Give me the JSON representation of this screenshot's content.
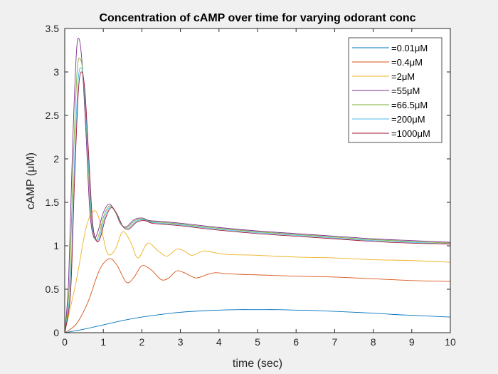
{
  "chart_data": {
    "type": "line",
    "title": "Concentration of cAMP over time for varying odorant conc",
    "xlabel": "time (sec)",
    "ylabel": "cAMP (μM)",
    "xlim": [
      0,
      10
    ],
    "ylim": [
      0,
      3.5
    ],
    "xticks": [
      0,
      1,
      2,
      3,
      4,
      5,
      6,
      7,
      8,
      9,
      10
    ],
    "yticks": [
      0,
      0.5,
      1,
      1.5,
      2,
      2.5,
      3,
      3.5
    ],
    "xtick_labels": [
      "0",
      "1",
      "2",
      "3",
      "4",
      "5",
      "6",
      "7",
      "8",
      "9",
      "10"
    ],
    "ytick_labels": [
      "0",
      "0.5",
      "1",
      "1.5",
      "2",
      "2.5",
      "3",
      "3.5"
    ],
    "grid": false,
    "legend_position": "top-right",
    "series": [
      {
        "name": "=0.01μM",
        "color": "#0072bd",
        "x": [
          0,
          0.5,
          1,
          1.5,
          2,
          2.5,
          3,
          3.5,
          4,
          4.5,
          5,
          5.5,
          6,
          6.5,
          7,
          7.5,
          8,
          8.5,
          9,
          9.5,
          10
        ],
        "y": [
          0,
          0.04,
          0.09,
          0.14,
          0.18,
          0.21,
          0.235,
          0.25,
          0.26,
          0.265,
          0.265,
          0.265,
          0.26,
          0.255,
          0.245,
          0.235,
          0.225,
          0.21,
          0.2,
          0.19,
          0.18
        ]
      },
      {
        "name": "=0.4μM",
        "color": "#d95319",
        "x": [
          0,
          0.3,
          0.6,
          0.9,
          1.15,
          1.35,
          1.6,
          1.8,
          2.0,
          2.25,
          2.5,
          2.7,
          2.9,
          3.1,
          3.4,
          3.7,
          3.9,
          4.2,
          4.6,
          5,
          6,
          7,
          8,
          9,
          10
        ],
        "y": [
          0,
          0.1,
          0.35,
          0.72,
          0.85,
          0.78,
          0.58,
          0.64,
          0.77,
          0.72,
          0.61,
          0.63,
          0.71,
          0.69,
          0.63,
          0.67,
          0.69,
          0.68,
          0.67,
          0.665,
          0.65,
          0.64,
          0.62,
          0.6,
          0.59
        ]
      },
      {
        "name": "=2μM",
        "color": "#edb120",
        "x": [
          0,
          0.3,
          0.55,
          0.75,
          0.9,
          1.1,
          1.3,
          1.5,
          1.7,
          1.9,
          2.15,
          2.4,
          2.65,
          2.9,
          3.1,
          3.3,
          3.6,
          3.9,
          4.2,
          5,
          6,
          7,
          8,
          9,
          10
        ],
        "y": [
          0,
          0.6,
          1.2,
          1.4,
          1.3,
          0.92,
          0.95,
          1.16,
          1.05,
          0.86,
          1.03,
          0.95,
          0.88,
          0.96,
          0.94,
          0.89,
          0.94,
          0.92,
          0.9,
          0.89,
          0.87,
          0.86,
          0.84,
          0.83,
          0.81
        ]
      },
      {
        "name": "=55μM",
        "color": "#7e2f8e",
        "x": [
          0,
          0.1,
          0.2,
          0.3,
          0.37,
          0.45,
          0.55,
          0.65,
          0.75,
          0.85,
          1.0,
          1.15,
          1.3,
          1.45,
          1.6,
          1.8,
          2.0,
          2.2,
          2.5,
          3,
          4,
          5,
          6,
          7,
          8,
          9,
          10
        ],
        "y": [
          0,
          0.6,
          2.1,
          3.2,
          3.38,
          3.1,
          2.3,
          1.4,
          1.1,
          1.15,
          1.38,
          1.48,
          1.4,
          1.25,
          1.22,
          1.3,
          1.32,
          1.29,
          1.28,
          1.26,
          1.21,
          1.17,
          1.14,
          1.11,
          1.08,
          1.06,
          1.04
        ]
      },
      {
        "name": "=66.5μM",
        "color": "#77ac30",
        "x": [
          0,
          0.12,
          0.22,
          0.32,
          0.4,
          0.48,
          0.58,
          0.68,
          0.78,
          0.88,
          1.02,
          1.17,
          1.32,
          1.47,
          1.62,
          1.82,
          2.02,
          2.22,
          2.5,
          3,
          4,
          5,
          6,
          7,
          8,
          9,
          10
        ],
        "y": [
          0,
          0.55,
          1.95,
          3.0,
          3.15,
          2.95,
          2.2,
          1.35,
          1.08,
          1.12,
          1.35,
          1.46,
          1.38,
          1.24,
          1.21,
          1.29,
          1.31,
          1.28,
          1.27,
          1.25,
          1.2,
          1.16,
          1.13,
          1.1,
          1.07,
          1.05,
          1.03
        ]
      },
      {
        "name": "=200μM",
        "color": "#4dbeee",
        "x": [
          0,
          0.14,
          0.24,
          0.34,
          0.42,
          0.5,
          0.6,
          0.7,
          0.8,
          0.9,
          1.04,
          1.19,
          1.34,
          1.49,
          1.64,
          1.84,
          2.04,
          2.24,
          2.5,
          3,
          4,
          5,
          6,
          7,
          8,
          9,
          10
        ],
        "y": [
          0,
          0.5,
          1.8,
          2.85,
          3.05,
          2.85,
          2.1,
          1.3,
          1.07,
          1.1,
          1.33,
          1.45,
          1.37,
          1.23,
          1.2,
          1.28,
          1.3,
          1.27,
          1.26,
          1.24,
          1.19,
          1.15,
          1.12,
          1.09,
          1.06,
          1.04,
          1.02
        ]
      },
      {
        "name": "=1000μM",
        "color": "#a2142f",
        "x": [
          0,
          0.15,
          0.25,
          0.35,
          0.43,
          0.52,
          0.62,
          0.72,
          0.82,
          0.92,
          1.06,
          1.21,
          1.36,
          1.51,
          1.66,
          1.86,
          2.06,
          2.26,
          2.5,
          3,
          4,
          5,
          6,
          7,
          8,
          9,
          10
        ],
        "y": [
          0,
          0.45,
          1.7,
          2.75,
          3.0,
          2.8,
          2.05,
          1.28,
          1.06,
          1.09,
          1.32,
          1.44,
          1.36,
          1.22,
          1.19,
          1.27,
          1.29,
          1.26,
          1.25,
          1.23,
          1.18,
          1.14,
          1.11,
          1.08,
          1.05,
          1.03,
          1.02
        ]
      }
    ]
  }
}
